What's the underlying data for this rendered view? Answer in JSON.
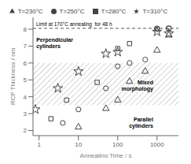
{
  "chart_data": {
    "type": "scatter",
    "title": "Limit at 170°C annealing  for 48 h",
    "xlabel": "Annealing Time / s",
    "ylabel": "RCP Thickness / nm",
    "log": "x",
    "xlim": [
      0.7,
      3500
    ],
    "ylim": [
      1.7,
      8.7
    ],
    "xticks": [
      1,
      10,
      100,
      1000
    ],
    "yticks": [
      2,
      3,
      4,
      5,
      6,
      7,
      8
    ],
    "grid": false,
    "legend": "top",
    "band": {
      "y": [
        3.5,
        6.0
      ],
      "color": "#aaaaaa"
    },
    "limit": {
      "y": 8.05,
      "color": "#555555",
      "line_style": "dashed"
    },
    "series": [
      {
        "name": "T=310°C",
        "marker": "star",
        "color": "#444444",
        "x": [
          0.8,
          3,
          10,
          50,
          100,
          1000,
          2000
        ],
        "values": [
          3.25,
          4.5,
          5.5,
          6.55,
          6.65,
          7.85,
          7.75
        ]
      },
      {
        "name": "T=280°C",
        "marker": "square",
        "color": "#444444",
        "x": [
          2,
          5,
          30,
          100,
          200,
          1000,
          2000
        ],
        "values": [
          2.7,
          3.8,
          4.85,
          6.85,
          7.15,
          8.0,
          8.05
        ]
      },
      {
        "name": "T=250°C",
        "marker": "circle",
        "color": "#444444",
        "x": [
          4,
          10,
          50,
          100,
          200,
          500,
          1000,
          2000
        ],
        "values": [
          2.45,
          3.25,
          4.5,
          5.8,
          6.0,
          6.2,
          8.05,
          8.05
        ]
      },
      {
        "name": "T=230°C",
        "marker": "triangle",
        "color": "#444444",
        "x": [
          10,
          50,
          100,
          200,
          500,
          1000,
          2000
        ],
        "values": [
          2.2,
          3.3,
          3.8,
          4.9,
          5.5,
          6.75,
          7.65
        ]
      }
    ],
    "annotations": [
      {
        "text": "Perpendicular\ncylinders",
        "x": 0.85,
        "y": 7.2
      },
      {
        "text": "Mixed\nmorphology",
        "x": 800,
        "y": 4.7
      },
      {
        "text": "Parallel\ncylinders",
        "x": 800,
        "y": 2.5
      }
    ]
  }
}
